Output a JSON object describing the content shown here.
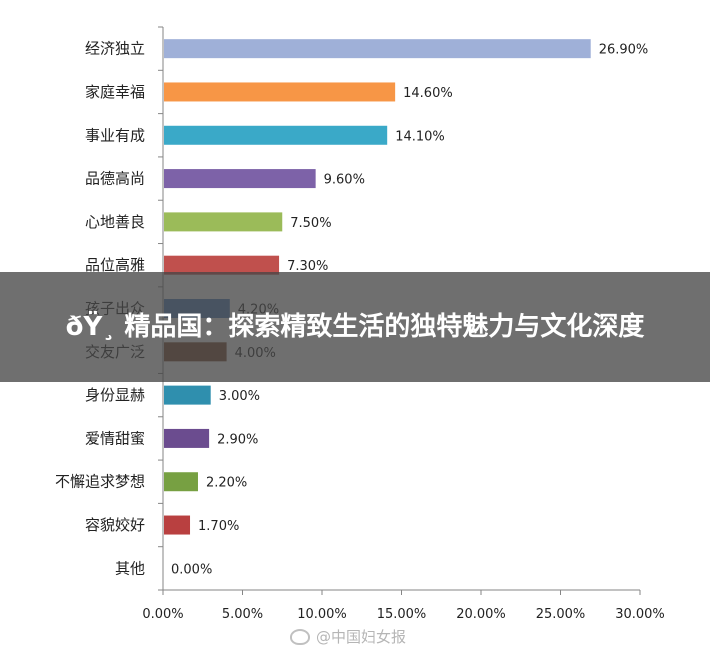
{
  "overlay": {
    "title": "ðŸ¸ 精品国：探索精致生活的独特魅力与文化深度"
  },
  "watermark": {
    "text": "@中国妇女报"
  },
  "chart_data": {
    "type": "bar",
    "orientation": "horizontal",
    "xlim": [
      0,
      30
    ],
    "x_ticks": [
      "0.00%",
      "5.00%",
      "10.00%",
      "15.00%",
      "20.00%",
      "25.00%",
      "30.00%"
    ],
    "categories": [
      "经济独立",
      "家庭幸福",
      "事业有成",
      "品德高尚",
      "心地善良",
      "品位高雅",
      "孩子出众",
      "交友广泛",
      "身份显赫",
      "爱情甜蜜",
      "不懈追求梦想",
      "容貌姣好",
      "其他"
    ],
    "values": [
      26.9,
      14.6,
      14.1,
      9.6,
      7.5,
      7.3,
      4.2,
      4.0,
      3.0,
      2.9,
      2.2,
      1.7,
      0.0
    ],
    "value_labels": [
      "26.90%",
      "14.60%",
      "14.10%",
      "9.60%",
      "7.50%",
      "7.30%",
      "4.20%",
      "4.00%",
      "3.00%",
      "2.90%",
      "2.20%",
      "1.70%",
      "0.00%"
    ],
    "colors": [
      "#9fb0d8",
      "#f79646",
      "#3aa9c8",
      "#7d62a8",
      "#9bbb59",
      "#c0504d",
      "#4f81bd",
      "#7a4a2e",
      "#2f8fae",
      "#6b4c8f",
      "#77a042",
      "#b94040",
      "#888888"
    ],
    "grid": false,
    "legend": "none"
  }
}
